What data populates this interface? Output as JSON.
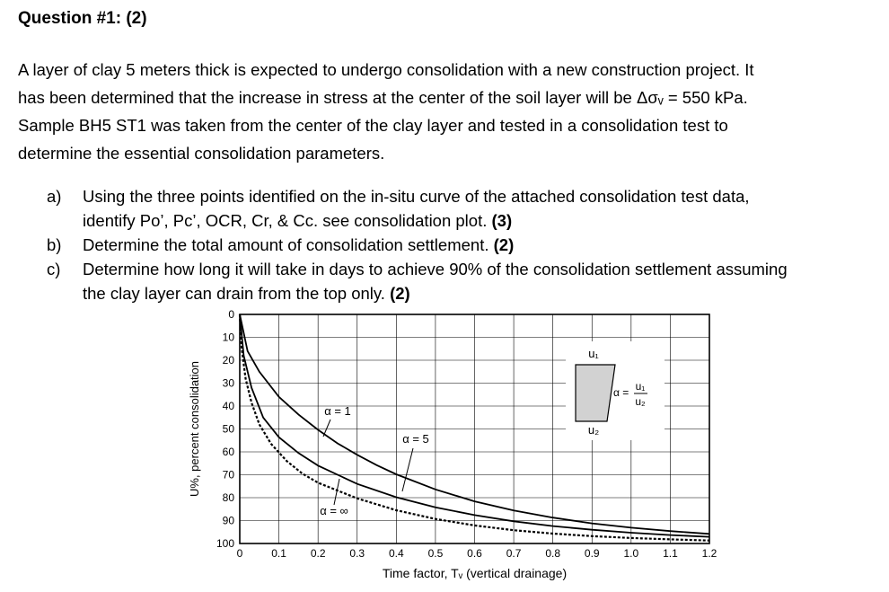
{
  "question": {
    "title": "Question #1: (2)",
    "paragraph": [
      "A layer of clay 5 meters thick is expected to undergo consolidation with a new construction project.  It",
      "has been determined that the increase in stress at the center of the soil layer will be Δσᵥ = 550 kPa.",
      "Sample BH5 ST1 was taken from the center of the clay layer and tested in a consolidation test to",
      "determine the essential consolidation parameters."
    ],
    "items": [
      {
        "marker": "a)",
        "lines": [
          "Using the three points identified on the in-situ curve of the attached consolidation test data,",
          "identify Po’, Pc’, OCR, Cr, & Cc. see consolidation plot. "
        ],
        "points": "(3)"
      },
      {
        "marker": "b)",
        "lines": [
          "Determine the total amount of consolidation settlement. "
        ],
        "points": "(2)"
      },
      {
        "marker": "c)",
        "lines": [
          "Determine how long it will take in days to achieve 90% of the consolidation settlement assuming",
          "the clay layer can drain from the top only. "
        ],
        "points": "(2)"
      }
    ]
  },
  "chart_data": {
    "type": "line",
    "title": "",
    "xlabel": "Time factor, Tᵥ (vertical drainage)",
    "ylabel": "U%, percent consolidation",
    "xlim": [
      0,
      1.2
    ],
    "ylim": [
      0,
      100
    ],
    "y_inverted": true,
    "grid": true,
    "x_ticks": [
      "0",
      "0.1",
      "0.2",
      "0.3",
      "0.4",
      "0.5",
      "0.6",
      "0.7",
      "0.8",
      "0.9",
      "1.0",
      "1.1",
      "1.2"
    ],
    "y_ticks": [
      "0",
      "10",
      "20",
      "30",
      "40",
      "50",
      "60",
      "70",
      "80",
      "90",
      "100"
    ],
    "series": [
      {
        "name": "α = 1",
        "style": "solid",
        "x": [
          0,
          0.02,
          0.05,
          0.1,
          0.15,
          0.2,
          0.25,
          0.3,
          0.35,
          0.4,
          0.5,
          0.6,
          0.7,
          0.8,
          0.9,
          1.0,
          1.1,
          1.2
        ],
        "y": [
          0,
          16,
          25,
          36,
          43.7,
          50.4,
          56.3,
          61.3,
          65.8,
          69.8,
          76.4,
          81.6,
          85.6,
          88.7,
          91.2,
          93.1,
          94.6,
          95.8
        ]
      },
      {
        "name": "α = 5",
        "style": "solid",
        "x": [
          0,
          0.01,
          0.03,
          0.06,
          0.1,
          0.15,
          0.2,
          0.3,
          0.4,
          0.5,
          0.6,
          0.7,
          0.8,
          0.9,
          1.0,
          1.1,
          1.2
        ],
        "y": [
          0,
          18,
          32,
          45,
          53.6,
          60.5,
          66,
          74,
          79.8,
          84.2,
          87.6,
          90.3,
          92.4,
          94,
          95.3,
          96.3,
          97.1
        ]
      },
      {
        "name": "α = ∞",
        "style": "dashed",
        "x": [
          0,
          0.005,
          0.015,
          0.03,
          0.05,
          0.08,
          0.12,
          0.16,
          0.2,
          0.3,
          0.4,
          0.5,
          0.6,
          0.7,
          0.8,
          0.9,
          1.0,
          1.1,
          1.2
        ],
        "y": [
          0,
          15,
          28,
          38.5,
          48,
          56.5,
          64,
          69.5,
          73.5,
          80.3,
          85.5,
          89.3,
          92.1,
          94.2,
          95.7,
          96.8,
          97.6,
          98.2,
          98.7
        ]
      }
    ],
    "annotations": [
      "α = 1",
      "α = 5",
      "α = ∞",
      "u₁",
      "u₂",
      "α = u₁/u₂"
    ]
  }
}
